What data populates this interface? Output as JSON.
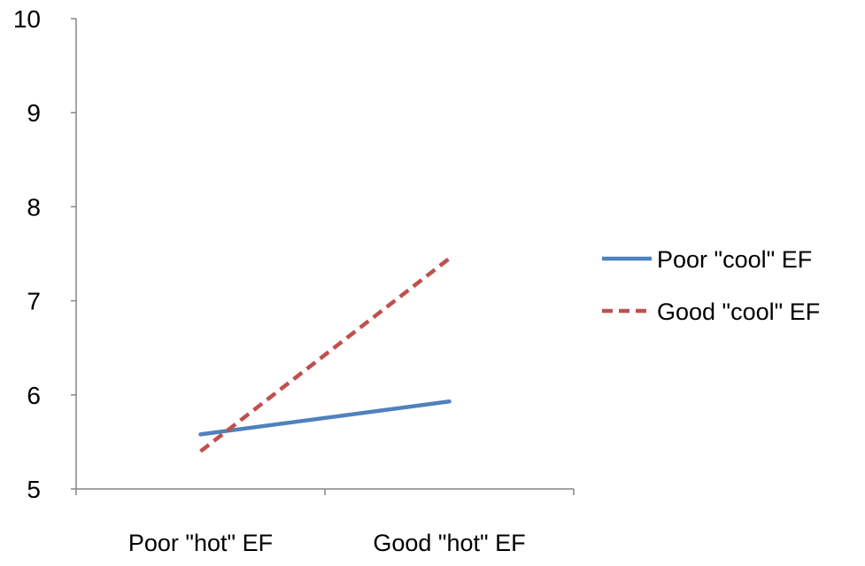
{
  "chart_data": {
    "type": "line",
    "title": "",
    "xlabel": "",
    "ylabel": "",
    "categories": [
      "Poor \"hot\" EF",
      "Good \"hot\" EF"
    ],
    "ylim": [
      5,
      10
    ],
    "yticks": [
      5,
      6,
      7,
      8,
      9,
      10
    ],
    "grid": false,
    "legend_position": "right",
    "series": [
      {
        "name": "Poor \"cool\" EF",
        "values": [
          5.58,
          5.93
        ],
        "color": "#4F81BD",
        "dash": "solid"
      },
      {
        "name": "Good \"cool\" EF",
        "values": [
          5.4,
          7.45
        ],
        "color": "#C0504D",
        "dash": "dashed"
      }
    ]
  }
}
